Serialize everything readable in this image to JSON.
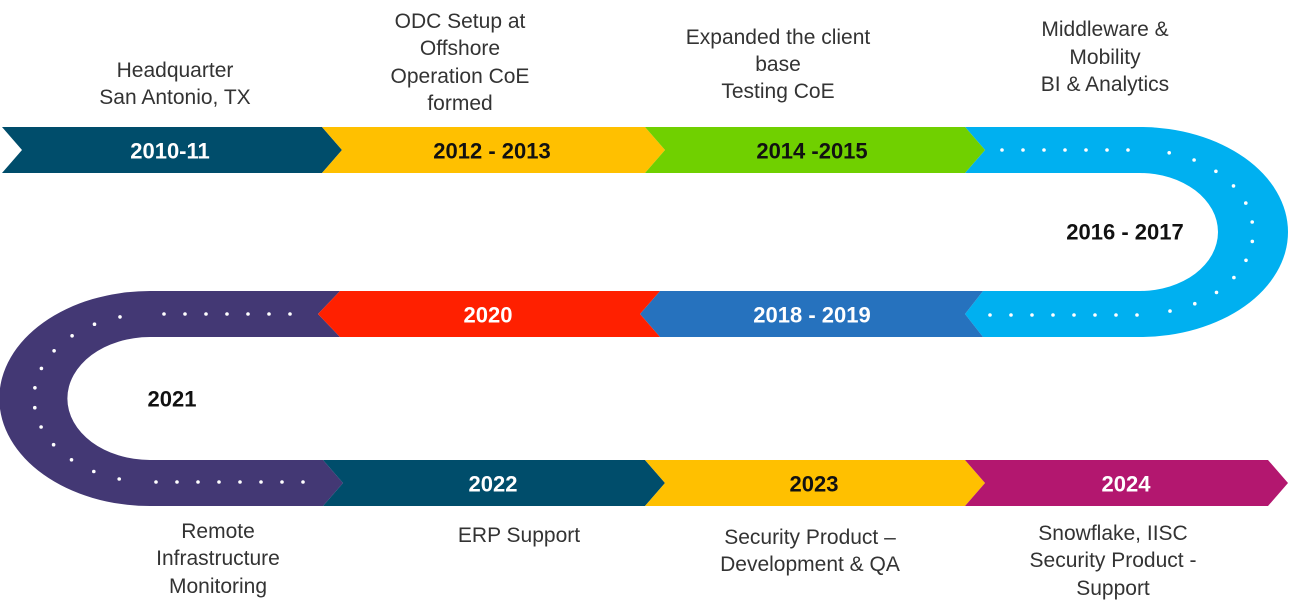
{
  "milestones": [
    {
      "year": "2010-11",
      "color": "#004D6B",
      "text_color": "#ffffff",
      "desc": [
        "Headquarter",
        "San Antonio, TX"
      ]
    },
    {
      "year": "2012 - 2013",
      "color": "#FFC000",
      "text_color": "#111111",
      "desc": [
        "ODC Setup at",
        "Offshore",
        "Operation CoE",
        "formed"
      ]
    },
    {
      "year": "2014 -2015",
      "color": "#70D000",
      "text_color": "#111111",
      "desc": [
        "Expanded the client",
        "base",
        "Testing CoE"
      ]
    },
    {
      "year": "2016 - 2017",
      "color": "#00B0F0",
      "text_color": "#111111",
      "desc": [
        "Middleware &",
        "Mobility",
        "BI & Analytics"
      ]
    },
    {
      "year": "2018 - 2019",
      "color": "#2672BE",
      "text_color": "#ffffff",
      "desc": []
    },
    {
      "year": "2020",
      "color": "#FF2000",
      "text_color": "#ffffff",
      "desc": []
    },
    {
      "year": "2021",
      "color": "#433874",
      "text_color": "#111111",
      "desc": [
        "Remote",
        "Infrastructure",
        "Monitoring"
      ]
    },
    {
      "year": "2022",
      "color": "#004D6B",
      "text_color": "#ffffff",
      "desc": [
        "ERP Support"
      ]
    },
    {
      "year": "2023",
      "color": "#FFC000",
      "text_color": "#111111",
      "desc": [
        "Security Product –",
        "Development & QA"
      ]
    },
    {
      "year": "2024",
      "color": "#B3176F",
      "text_color": "#ffffff",
      "desc": [
        "Snowflake, IISC",
        "Security Product -",
        "Support"
      ]
    }
  ]
}
